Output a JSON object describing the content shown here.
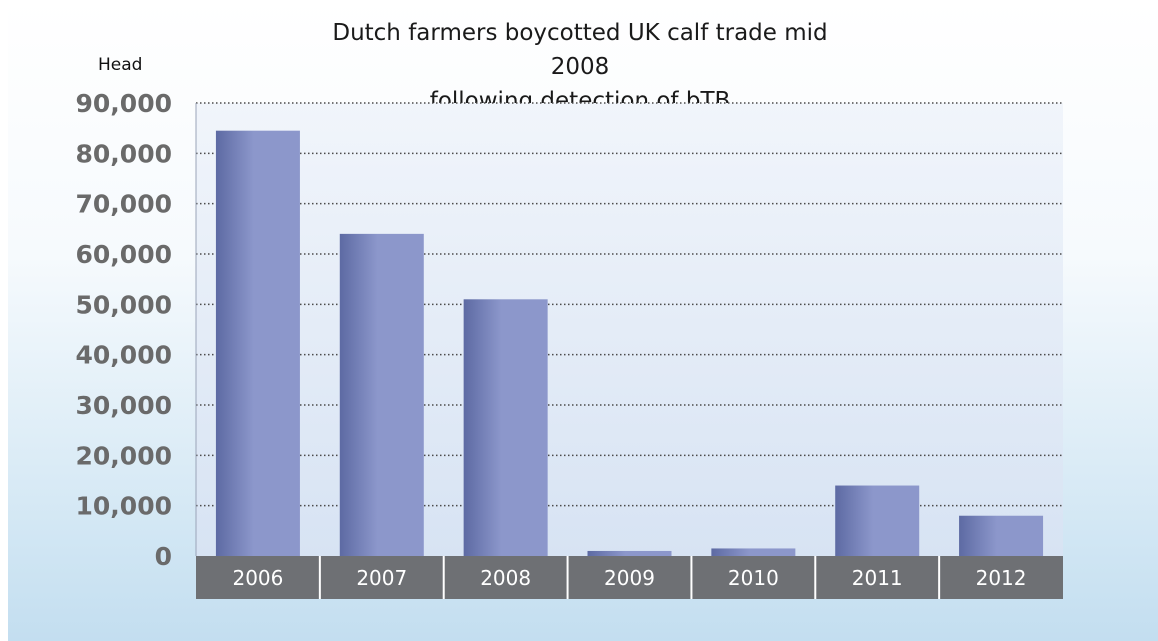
{
  "chart_data": {
    "type": "bar",
    "title": [
      "Dutch farmers boycotted UK calf trade mid 2008",
      "following detection of bTB"
    ],
    "ylabel": "Head",
    "xlabel": "",
    "categories": [
      "2006",
      "2007",
      "2008",
      "2009",
      "2010",
      "2011",
      "2012"
    ],
    "values": [
      84500,
      64000,
      51000,
      1000,
      1500,
      14000,
      8000
    ],
    "ylim": [
      0,
      90000
    ],
    "yticks": [
      0,
      10000,
      20000,
      30000,
      40000,
      50000,
      60000,
      70000,
      80000,
      90000
    ],
    "ytick_labels": [
      "0",
      "10,000",
      "20,000",
      "30,000",
      "40,000",
      "50,000",
      "60,000",
      "70,000",
      "80,000",
      "90,000"
    ],
    "grid": true,
    "legend": "none",
    "colors": {
      "bar_dark": "#5d6aa3",
      "bar_light": "#8c97cb",
      "axis_band": "#6e7074",
      "plot_bg_top": "#f1f5fb",
      "plot_bg_bottom": "#d7e3f3",
      "gridline": "#4a4a4a"
    }
  }
}
